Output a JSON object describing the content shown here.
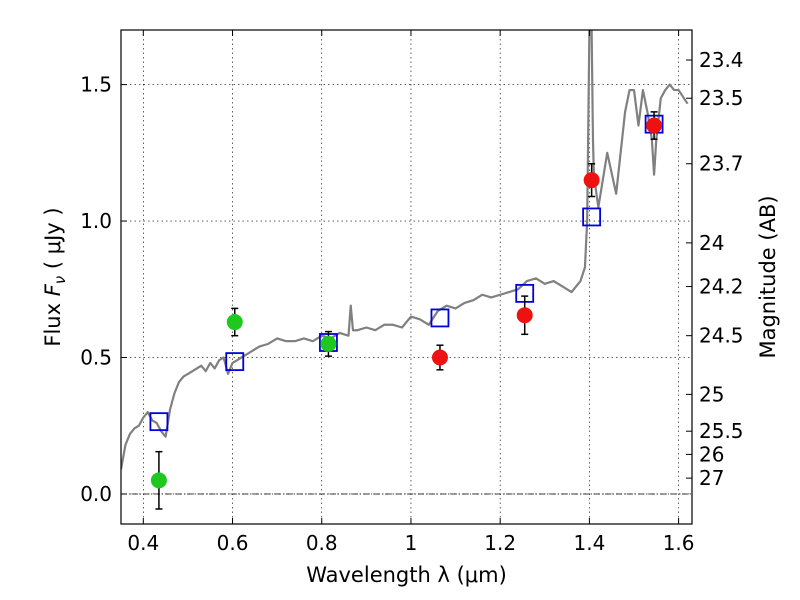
{
  "chart_data": {
    "type": "scatter",
    "xlabel": "Wavelength  λ (μm)",
    "ylabel": "Flux  F_ν  ( μJy )",
    "ylabel_right": "Magnitude (AB)",
    "xlim": [
      0.35,
      1.63
    ],
    "ylim": [
      -0.11,
      1.7
    ],
    "grid": true,
    "x_ticks": [
      0.4,
      0.6,
      0.8,
      1.0,
      1.2,
      1.4,
      1.6
    ],
    "x_tick_labels": [
      "0.4",
      "0.6",
      "0.8",
      "1",
      "1.2",
      "1.4",
      "1.6"
    ],
    "y_ticks": [
      0.0,
      0.5,
      1.0,
      1.5
    ],
    "y_tick_labels": [
      "0.0",
      "0.5",
      "1.0",
      "1.5"
    ],
    "right_ticks": [
      {
        "label": "23.4",
        "flux": 1.59
      },
      {
        "label": "23.5",
        "flux": 1.45
      },
      {
        "label": "23.7",
        "flux": 1.21
      },
      {
        "label": "24",
        "flux": 0.92
      },
      {
        "label": "24.2",
        "flux": 0.76
      },
      {
        "label": "24.5",
        "flux": 0.58
      },
      {
        "label": "25",
        "flux": 0.365
      },
      {
        "label": "25.5",
        "flux": 0.23
      },
      {
        "label": "26",
        "flux": 0.145
      },
      {
        "label": "27",
        "flux": 0.058
      }
    ],
    "colors": {
      "model": "#808080",
      "model_photometry": "#0000dd",
      "hst_points": "#1ec81e",
      "ir_points": "#ee1111",
      "errorbar": "#000000"
    },
    "series": [
      {
        "kind": "model_spectrum",
        "x": [
          0.35,
          0.36,
          0.37,
          0.38,
          0.39,
          0.4,
          0.41,
          0.42,
          0.43,
          0.44,
          0.45,
          0.46,
          0.47,
          0.48,
          0.49,
          0.5,
          0.51,
          0.52,
          0.53,
          0.54,
          0.55,
          0.56,
          0.57,
          0.58,
          0.59,
          0.6,
          0.62,
          0.64,
          0.66,
          0.68,
          0.7,
          0.72,
          0.74,
          0.76,
          0.78,
          0.8,
          0.82,
          0.84,
          0.86,
          0.865,
          0.87,
          0.88,
          0.9,
          0.92,
          0.94,
          0.96,
          0.98,
          1.0,
          1.02,
          1.04,
          1.06,
          1.08,
          1.1,
          1.12,
          1.14,
          1.16,
          1.18,
          1.2,
          1.22,
          1.24,
          1.26,
          1.28,
          1.3,
          1.32,
          1.34,
          1.36,
          1.38,
          1.39,
          1.395,
          1.4,
          1.402,
          1.405,
          1.408,
          1.41,
          1.42,
          1.44,
          1.46,
          1.48,
          1.49,
          1.5,
          1.51,
          1.52,
          1.53,
          1.54,
          1.545,
          1.55,
          1.56,
          1.57,
          1.58,
          1.59,
          1.6,
          1.62
        ],
        "y": [
          0.09,
          0.18,
          0.22,
          0.24,
          0.25,
          0.28,
          0.3,
          0.27,
          0.26,
          0.23,
          0.21,
          0.31,
          0.37,
          0.41,
          0.43,
          0.44,
          0.45,
          0.46,
          0.47,
          0.45,
          0.48,
          0.46,
          0.49,
          0.5,
          0.44,
          0.48,
          0.5,
          0.52,
          0.54,
          0.55,
          0.57,
          0.56,
          0.56,
          0.57,
          0.56,
          0.58,
          0.57,
          0.59,
          0.58,
          0.69,
          0.6,
          0.6,
          0.61,
          0.6,
          0.62,
          0.62,
          0.61,
          0.65,
          0.64,
          0.62,
          0.67,
          0.69,
          0.68,
          0.7,
          0.71,
          0.73,
          0.72,
          0.73,
          0.74,
          0.75,
          0.78,
          0.79,
          0.77,
          0.78,
          0.76,
          0.74,
          0.78,
          0.83,
          1.0,
          1.7,
          1.7,
          1.7,
          1.3,
          1.17,
          1.05,
          1.25,
          1.1,
          1.4,
          1.48,
          1.48,
          1.35,
          1.48,
          1.4,
          1.3,
          1.17,
          1.3,
          1.45,
          1.48,
          1.5,
          1.48,
          1.48,
          1.43
        ]
      },
      {
        "kind": "model_photometry",
        "x": [
          0.435,
          0.605,
          0.815,
          1.065,
          1.255,
          1.405,
          1.545
        ],
        "y": [
          0.265,
          0.485,
          0.555,
          0.645,
          0.735,
          1.015,
          1.355
        ]
      },
      {
        "kind": "observed_hst",
        "x": [
          0.435,
          0.605,
          0.815
        ],
        "y": [
          0.05,
          0.63,
          0.55
        ],
        "err": [
          0.105,
          0.05,
          0.045
        ]
      },
      {
        "kind": "observed_ir",
        "x": [
          1.065,
          1.255,
          1.405,
          1.545
        ],
        "y": [
          0.5,
          0.655,
          1.15,
          1.35
        ],
        "err": [
          0.045,
          0.07,
          0.06,
          0.05
        ]
      }
    ]
  }
}
